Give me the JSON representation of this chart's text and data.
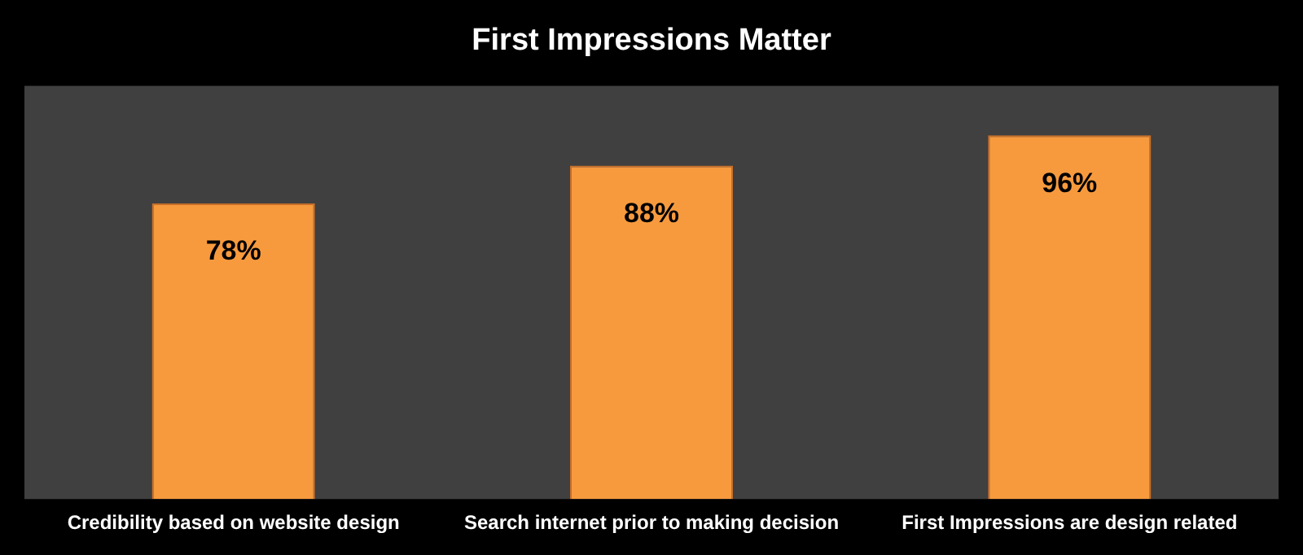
{
  "chart_data": {
    "type": "bar",
    "title": "First Impressions Matter",
    "categories": [
      "Credibility based on website design",
      "Search internet prior to making decision",
      "First Impressions are design related"
    ],
    "values": [
      78,
      88,
      96
    ],
    "value_labels": [
      "78%",
      "88%",
      "96%"
    ],
    "color": "#f79a3e",
    "ylim": [
      0,
      109
    ],
    "tick_labels": "x",
    "grid": false,
    "legend": false
  }
}
